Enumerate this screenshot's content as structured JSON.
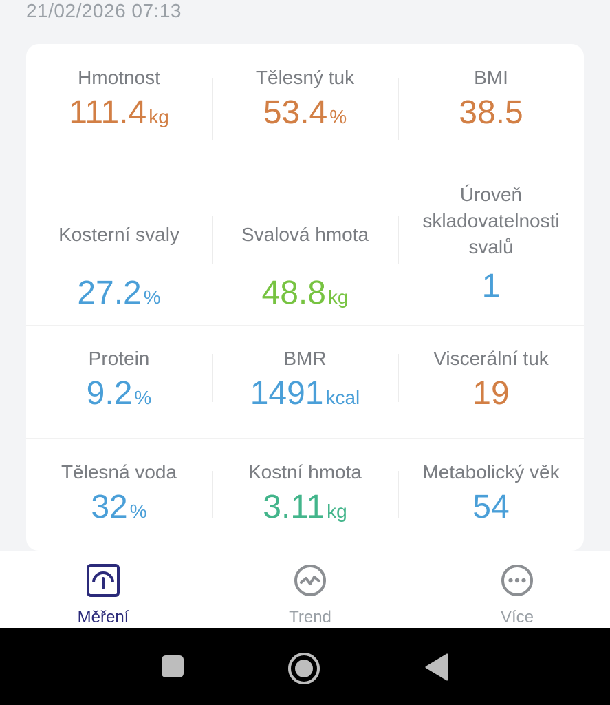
{
  "timestamp": "21/02/2026 07:13",
  "metrics": [
    {
      "label": "Hmotnost",
      "value": "111.4",
      "unit": "kg",
      "color": "#d27f45"
    },
    {
      "label": "Tělesný tuk",
      "value": "53.4",
      "unit": "%",
      "color": "#d27f45"
    },
    {
      "label": "BMI",
      "value": "38.5",
      "unit": "",
      "color": "#d27f45"
    },
    {
      "label": "Kosterní svaly",
      "value": "27.2",
      "unit": "%",
      "color": "#4a9fd8"
    },
    {
      "label": "Svalová hmota",
      "value": "48.8",
      "unit": "kg",
      "color": "#77c341"
    },
    {
      "label_lines": [
        "Úroveň",
        "skladovatelnosti",
        "svalů"
      ],
      "value": "1",
      "unit": "",
      "color": "#4a9fd8"
    },
    {
      "label": "Protein",
      "value": "9.2",
      "unit": "%",
      "color": "#4a9fd8"
    },
    {
      "label": "BMR",
      "value": "1491",
      "unit": "kcal",
      "color": "#4a9fd8"
    },
    {
      "label": "Viscerální tuk",
      "value": "19",
      "unit": "",
      "color": "#d27f45"
    },
    {
      "label": "Tělesná voda",
      "value": "32",
      "unit": "%",
      "color": "#4a9fd8"
    },
    {
      "label": "Kostní hmota",
      "value": "3.11",
      "unit": "kg",
      "color": "#43b58b"
    },
    {
      "label": "Metabolický věk",
      "value": "54",
      "unit": "",
      "color": "#4a9fd8"
    }
  ],
  "tabs": [
    {
      "label": "Měření",
      "icon": "scale-icon",
      "active": true
    },
    {
      "label": "Trend",
      "icon": "trend-icon",
      "active": false
    },
    {
      "label": "Více",
      "icon": "more-icon",
      "active": false
    }
  ],
  "colors": {
    "accent": "#2b2a7a",
    "orange": "#d27f45",
    "blue": "#4a9fd8",
    "green": "#77c341",
    "teal": "#43b58b"
  }
}
